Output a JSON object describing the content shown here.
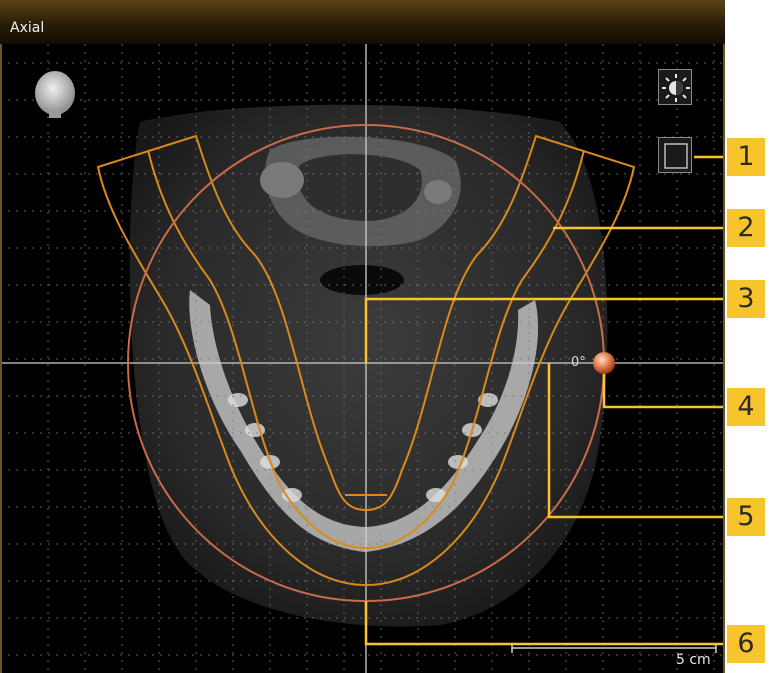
{
  "viewer": {
    "title": "Axial"
  },
  "annotations": {
    "angle": "0°",
    "scale_label": "5 cm"
  },
  "callouts": [
    "1",
    "2",
    "3",
    "4",
    "5",
    "6"
  ],
  "toolbar": {
    "brightness_icon": "brightness-contrast-icon",
    "frame_icon": "frame-toggle-icon"
  },
  "colors": {
    "accent": "#f7c52b",
    "curve": "#d98a1a",
    "circle": "#c96a4a",
    "title_bar": "#3b2b0e"
  }
}
